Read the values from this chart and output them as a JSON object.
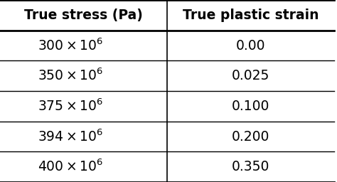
{
  "col1_header": "True stress (Pa)",
  "col2_header": "True plastic strain",
  "rows": [
    [
      "$300 \\times 10^{6}$",
      "0.00"
    ],
    [
      "$350 \\times 10^{6}$",
      "0.025"
    ],
    [
      "$375 \\times 10^{6}$",
      "0.100"
    ],
    [
      "$394 \\times 10^{6}$",
      "0.200"
    ],
    [
      "$400 \\times 10^{6}$",
      "0.350"
    ]
  ],
  "bg_color": "#ffffff",
  "text_color": "#000000",
  "header_fontsize": 13.5,
  "cell_fontsize": 13.5,
  "col_split": 0.5
}
